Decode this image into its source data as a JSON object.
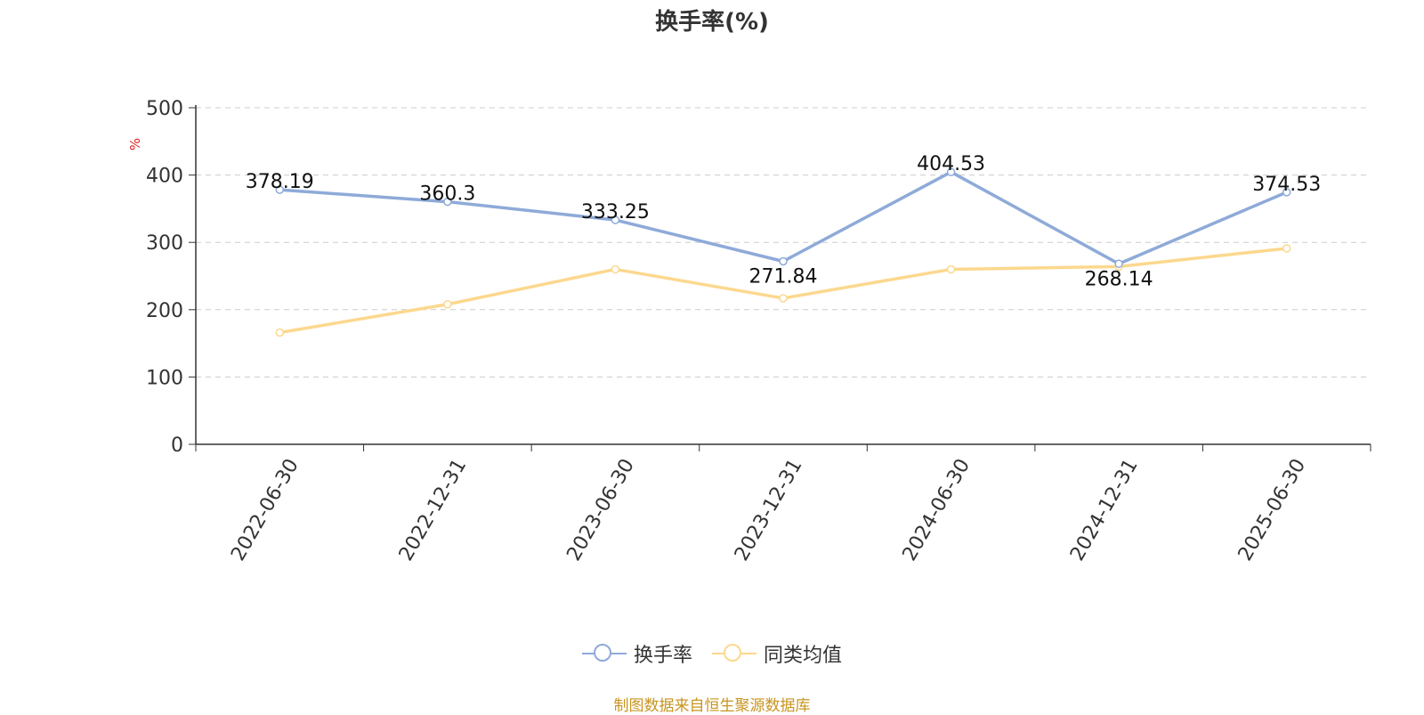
{
  "chart_data": {
    "type": "line",
    "title": "换手率(%)",
    "ylabel": "%",
    "categories": [
      "2022-06-30",
      "2022-12-31",
      "2023-06-30",
      "2023-12-31",
      "2024-06-30",
      "2024-12-31",
      "2025-06-30"
    ],
    "ylim": [
      0,
      500
    ],
    "yticks": [
      0,
      100,
      200,
      300,
      400,
      500
    ],
    "grid": true,
    "legend_position": "bottom",
    "series": [
      {
        "name": "换手率",
        "color": "#8eaad8",
        "values": [
          378.19,
          360.3,
          333.25,
          271.84,
          404.53,
          268.14,
          374.53
        ],
        "labels": [
          "378.19",
          "360.3",
          "333.25",
          "271.84",
          "404.53",
          "268.14",
          "374.53"
        ]
      },
      {
        "name": "同类均值",
        "color": "#fcd88e",
        "values": [
          166,
          208,
          260,
          217,
          260,
          264,
          291
        ]
      }
    ]
  },
  "source_note": "制图数据来自恒生聚源数据库"
}
